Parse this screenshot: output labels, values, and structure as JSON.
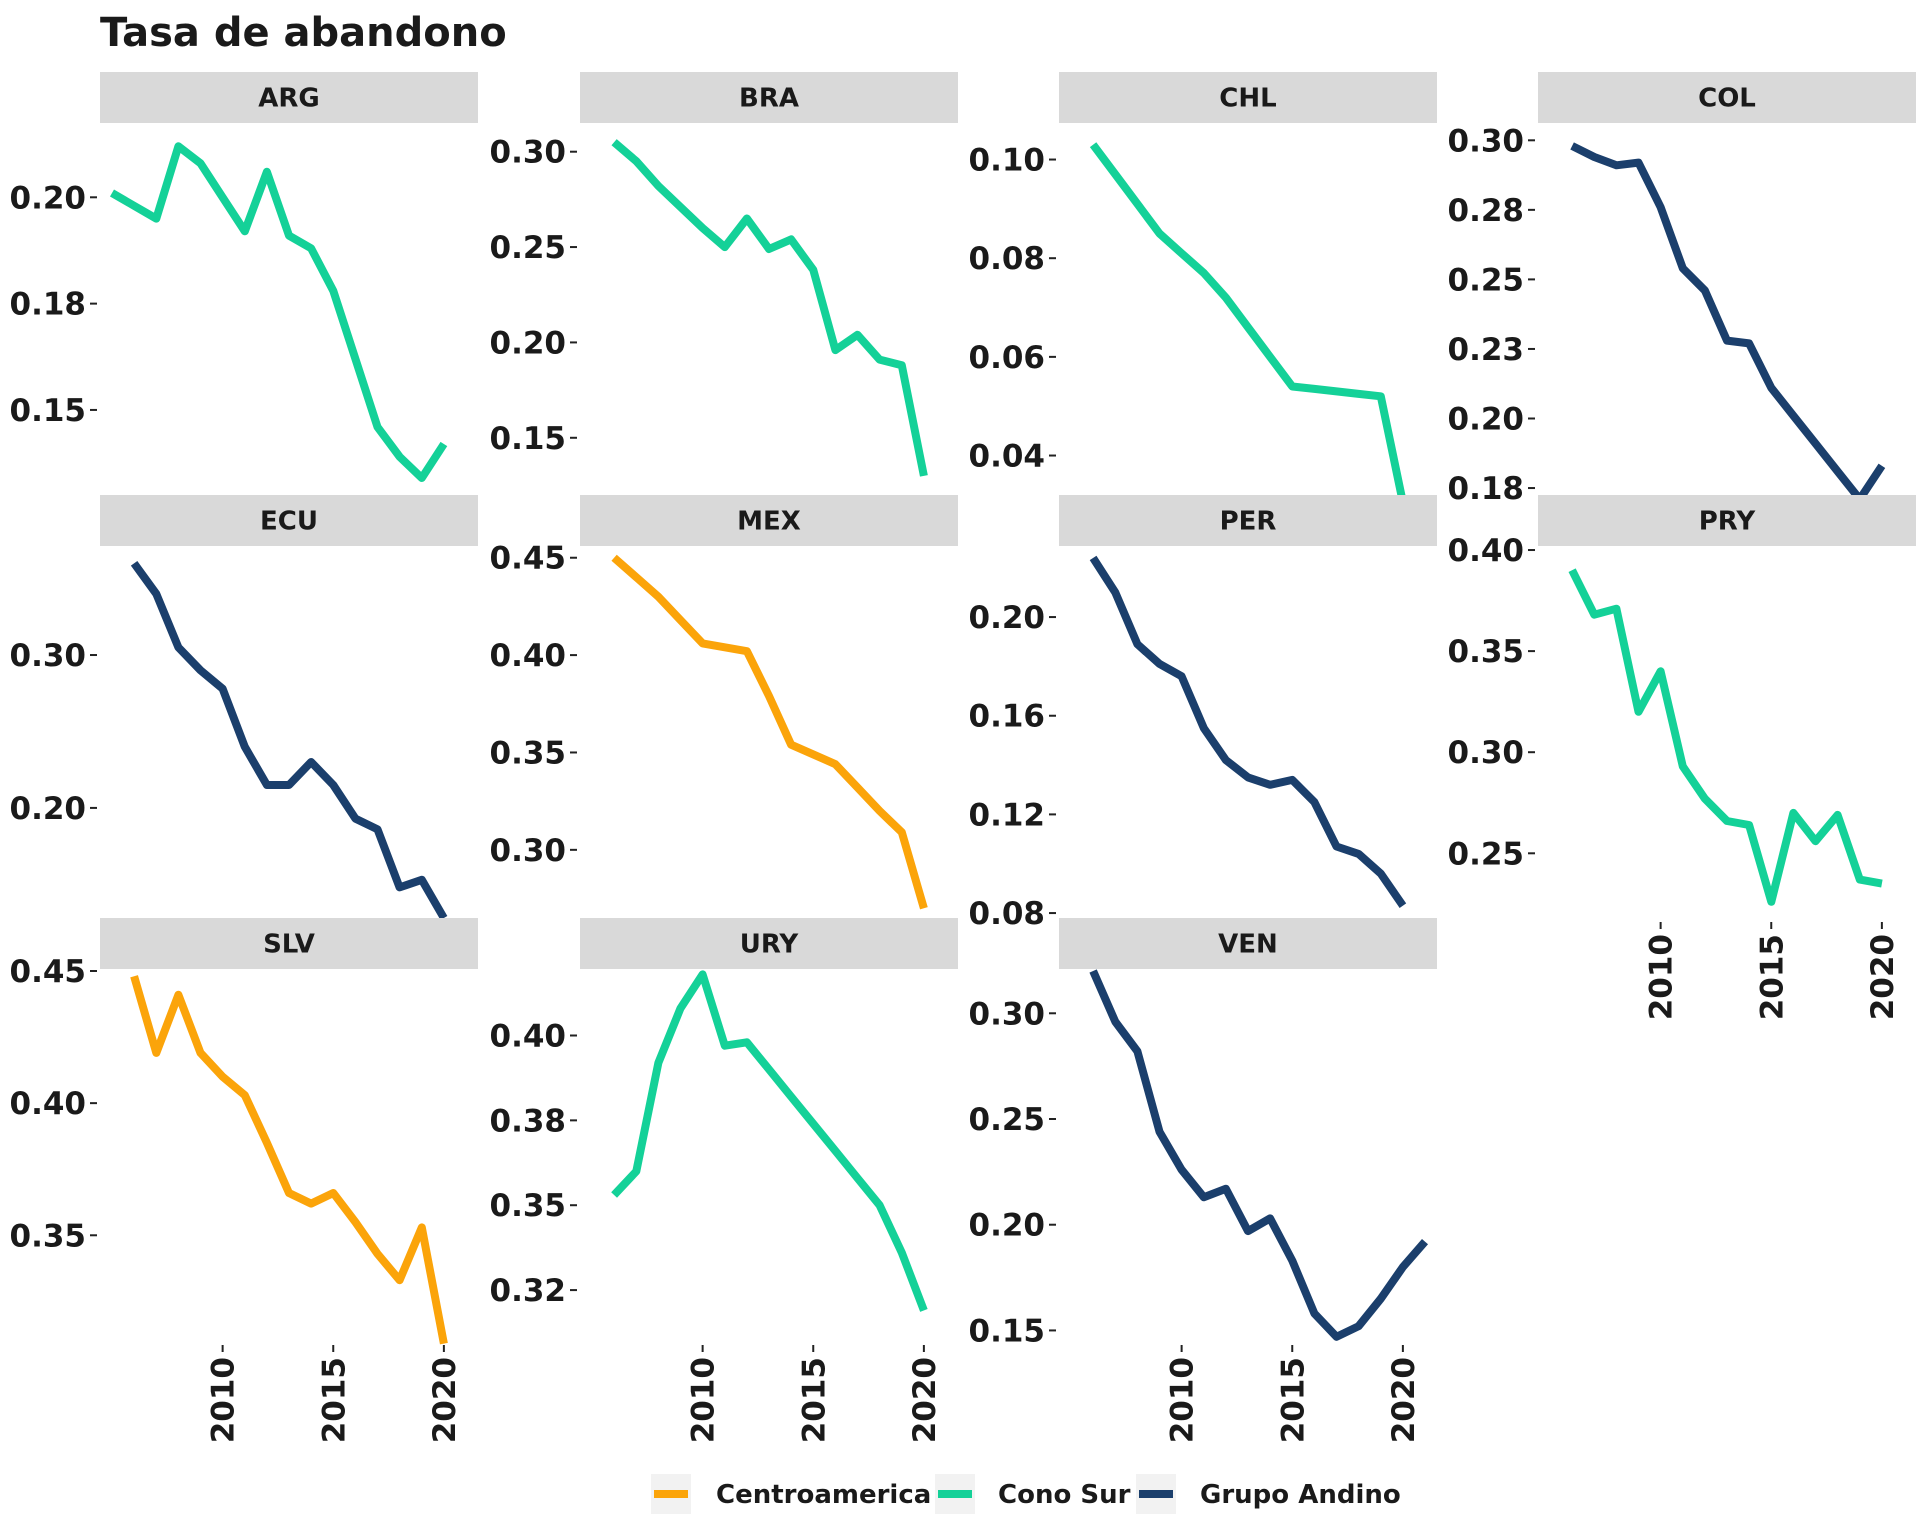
{
  "chart_data": {
    "type": "line",
    "title": "Tasa de abandono",
    "xlabel": "",
    "ylabel": "",
    "grid": false,
    "legend_position": "bottom",
    "x_ticks": [
      2010,
      2015,
      2020
    ],
    "legend": [
      {
        "name": "Centroamerica",
        "color": "#FBA40A"
      },
      {
        "name": "Cono Sur",
        "color": "#14D198"
      },
      {
        "name": "Grupo Andino",
        "color": "#1B3F6C"
      }
    ],
    "panels": [
      {
        "label": "ARG",
        "group": "Cono Sur",
        "ylim": [
          0.13,
          0.217
        ],
        "yticks": [
          {
            "value": 0.15,
            "label": "0.15"
          },
          {
            "value": 0.175,
            "label": "0.18"
          },
          {
            "value": 0.2,
            "label": "0.20"
          }
        ],
        "x": [
          2005,
          2006,
          2007,
          2008,
          2009,
          2010,
          2011,
          2012,
          2013,
          2014,
          2015,
          2016,
          2017,
          2018,
          2019,
          2020
        ],
        "y": [
          0.201,
          0.198,
          0.195,
          0.212,
          0.208,
          0.2,
          0.192,
          0.206,
          0.191,
          0.188,
          0.178,
          0.162,
          0.146,
          0.139,
          0.134,
          0.142
        ]
      },
      {
        "label": "BRA",
        "group": "Cono Sur",
        "ylim": [
          0.12,
          0.314
        ],
        "yticks": [
          {
            "value": 0.15,
            "label": "0.15"
          },
          {
            "value": 0.2,
            "label": "0.20"
          },
          {
            "value": 0.25,
            "label": "0.25"
          },
          {
            "value": 0.3,
            "label": "0.30"
          }
        ],
        "x": [
          2006,
          2007,
          2008,
          2009,
          2010,
          2011,
          2012,
          2013,
          2014,
          2015,
          2016,
          2017,
          2018,
          2019,
          2020
        ],
        "y": [
          0.305,
          0.295,
          0.282,
          0.271,
          0.26,
          0.25,
          0.265,
          0.249,
          0.254,
          0.238,
          0.196,
          0.204,
          0.191,
          0.188,
          0.13
        ]
      },
      {
        "label": "CHL",
        "group": "Cono Sur",
        "ylim": [
          0.032,
          0.107
        ],
        "yticks": [
          {
            "value": 0.04,
            "label": "0.04"
          },
          {
            "value": 0.06,
            "label": "0.06"
          },
          {
            "value": 0.08,
            "label": "0.08"
          },
          {
            "value": 0.1,
            "label": "0.10"
          }
        ],
        "x": [
          2006,
          2007,
          2008,
          2009,
          2010,
          2011,
          2012,
          2013,
          2014,
          2015,
          2016,
          2017,
          2018,
          2019,
          2020
        ],
        "y": [
          0.103,
          0.097,
          0.091,
          0.085,
          0.081,
          0.077,
          0.072,
          0.066,
          0.06,
          0.054,
          0.0535,
          0.053,
          0.0525,
          0.052,
          0.0305
        ]
      },
      {
        "label": "COL",
        "group": "Grupo Andino",
        "ylim": [
          0.1725,
          0.3055
        ],
        "yticks": [
          {
            "value": 0.175,
            "label": "0.18"
          },
          {
            "value": 0.2,
            "label": "0.20"
          },
          {
            "value": 0.225,
            "label": "0.23"
          },
          {
            "value": 0.25,
            "label": "0.25"
          },
          {
            "value": 0.275,
            "label": "0.28"
          },
          {
            "value": 0.3,
            "label": "0.30"
          }
        ],
        "x": [
          2006,
          2007,
          2008,
          2009,
          2010,
          2011,
          2012,
          2013,
          2014,
          2015,
          2016,
          2017,
          2018,
          2019,
          2020
        ],
        "y": [
          0.298,
          0.294,
          0.291,
          0.292,
          0.276,
          0.254,
          0.246,
          0.228,
          0.227,
          0.211,
          0.201,
          0.191,
          0.181,
          0.171,
          0.183
        ]
      },
      {
        "label": "ECU",
        "group": "Grupo Andino",
        "ylim": [
          0.128,
          0.37
        ],
        "yticks": [
          {
            "value": 0.2,
            "label": "0.20"
          },
          {
            "value": 0.3,
            "label": "0.30"
          }
        ],
        "x": [
          2006,
          2007,
          2008,
          2009,
          2010,
          2011,
          2012,
          2013,
          2014,
          2015,
          2016,
          2017,
          2018,
          2019,
          2020
        ],
        "y": [
          0.36,
          0.34,
          0.305,
          0.29,
          0.278,
          0.24,
          0.215,
          0.215,
          0.23,
          0.215,
          0.193,
          0.186,
          0.148,
          0.153,
          0.128
        ]
      },
      {
        "label": "MEX",
        "group": "Centroamerica",
        "ylim": [
          0.265,
          0.455
        ],
        "yticks": [
          {
            "value": 0.3,
            "label": "0.30"
          },
          {
            "value": 0.35,
            "label": "0.35"
          },
          {
            "value": 0.4,
            "label": "0.40"
          },
          {
            "value": 0.45,
            "label": "0.45"
          }
        ],
        "x": [
          2006,
          2007,
          2008,
          2009,
          2010,
          2011,
          2012,
          2013,
          2014,
          2015,
          2016,
          2017,
          2018,
          2019,
          2020
        ],
        "y": [
          0.45,
          0.44,
          0.43,
          0.418,
          0.406,
          0.404,
          0.402,
          0.379,
          0.354,
          0.349,
          0.344,
          0.332,
          0.32,
          0.309,
          0.27
        ]
      },
      {
        "label": "PER",
        "group": "Grupo Andino",
        "ylim": [
          0.078,
          0.228
        ],
        "yticks": [
          {
            "value": 0.08,
            "label": "0.08"
          },
          {
            "value": 0.12,
            "label": "0.12"
          },
          {
            "value": 0.16,
            "label": "0.16"
          },
          {
            "value": 0.2,
            "label": "0.20"
          }
        ],
        "x": [
          2006,
          2007,
          2008,
          2009,
          2010,
          2011,
          2012,
          2013,
          2014,
          2015,
          2016,
          2017,
          2018,
          2019,
          2020
        ],
        "y": [
          0.224,
          0.21,
          0.189,
          0.181,
          0.176,
          0.155,
          0.142,
          0.135,
          0.132,
          0.134,
          0.125,
          0.107,
          0.104,
          0.096,
          0.083
        ]
      },
      {
        "label": "PRY",
        "group": "Cono Sur",
        "ylim": [
          0.218,
          0.401
        ],
        "yticks": [
          {
            "value": 0.25,
            "label": "0.25"
          },
          {
            "value": 0.3,
            "label": "0.30"
          },
          {
            "value": 0.35,
            "label": "0.35"
          },
          {
            "value": 0.4,
            "label": "0.40"
          }
        ],
        "x": [
          2006,
          2007,
          2008,
          2009,
          2010,
          2011,
          2012,
          2013,
          2014,
          2015,
          2016,
          2017,
          2018,
          2019,
          2020
        ],
        "y": [
          0.39,
          0.368,
          0.371,
          0.32,
          0.34,
          0.293,
          0.277,
          0.266,
          0.264,
          0.226,
          0.27,
          0.256,
          0.269,
          0.237,
          0.235
        ]
      },
      {
        "label": "SLV",
        "group": "Centroamerica",
        "ylim": [
          0.31,
          0.45
        ],
        "yticks": [
          {
            "value": 0.35,
            "label": "0.35"
          },
          {
            "value": 0.4,
            "label": "0.40"
          },
          {
            "value": 0.45,
            "label": "0.45"
          }
        ],
        "x": [
          2006,
          2007,
          2008,
          2009,
          2010,
          2011,
          2012,
          2013,
          2014,
          2015,
          2016,
          2017,
          2018,
          2019,
          2020
        ],
        "y": [
          0.448,
          0.419,
          0.441,
          0.419,
          0.41,
          0.403,
          0.385,
          0.366,
          0.362,
          0.366,
          0.355,
          0.343,
          0.333,
          0.353,
          0.309
        ]
      },
      {
        "label": "URY",
        "group": "Cono Sur",
        "ylim": [
          0.31,
          0.419
        ],
        "yticks": [
          {
            "value": 0.325,
            "label": "0.32"
          },
          {
            "value": 0.35,
            "label": "0.35"
          },
          {
            "value": 0.375,
            "label": "0.38"
          },
          {
            "value": 0.4,
            "label": "0.40"
          }
        ],
        "x": [
          2006,
          2007,
          2008,
          2009,
          2010,
          2011,
          2012,
          2013,
          2014,
          2015,
          2016,
          2017,
          2018,
          2019,
          2020
        ],
        "y": [
          0.353,
          0.36,
          0.392,
          0.408,
          0.418,
          0.397,
          0.398,
          0.39,
          0.382,
          0.374,
          0.366,
          0.358,
          0.35,
          0.336,
          0.319
        ]
      },
      {
        "label": "VEN",
        "group": "Grupo Andino",
        "ylim": [
          0.145,
          0.32
        ],
        "yticks": [
          {
            "value": 0.15,
            "label": "0.15"
          },
          {
            "value": 0.2,
            "label": "0.20"
          },
          {
            "value": 0.25,
            "label": "0.25"
          },
          {
            "value": 0.3,
            "label": "0.30"
          }
        ],
        "x": [
          2006,
          2007,
          2008,
          2009,
          2010,
          2011,
          2012,
          2013,
          2014,
          2015,
          2016,
          2017,
          2018,
          2019,
          2020,
          2021
        ],
        "y": [
          0.32,
          0.296,
          0.282,
          0.244,
          0.226,
          0.213,
          0.217,
          0.197,
          0.203,
          0.183,
          0.158,
          0.147,
          0.152,
          0.165,
          0.18,
          0.192
        ]
      }
    ]
  }
}
